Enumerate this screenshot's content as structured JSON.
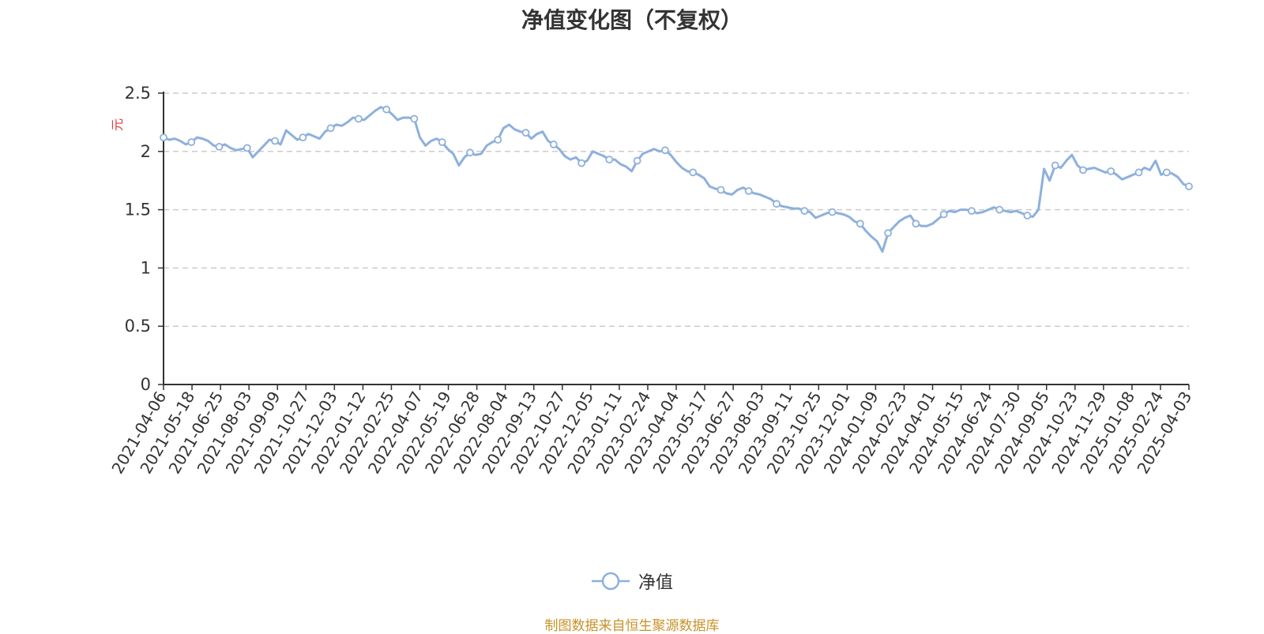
{
  "chart_data": {
    "type": "line",
    "title": "净值变化图（不复权）",
    "ylabel": "元",
    "ylim": [
      0,
      2.5
    ],
    "yticks": [
      "0",
      "0.5",
      "1",
      "1.5",
      "2",
      "2.5"
    ],
    "xlabels": [
      "2021-04-06",
      "2021-05-18",
      "2021-06-25",
      "2021-08-03",
      "2021-09-09",
      "2021-10-27",
      "2021-12-03",
      "2022-01-12",
      "2022-02-25",
      "2022-04-07",
      "2022-05-19",
      "2022-06-28",
      "2022-08-04",
      "2022-09-13",
      "2022-10-27",
      "2022-12-05",
      "2023-01-11",
      "2023-02-24",
      "2023-04-04",
      "2023-05-17",
      "2023-06-27",
      "2023-08-03",
      "2023-09-11",
      "2023-10-25",
      "2023-12-01",
      "2024-01-09",
      "2024-02-23",
      "2024-04-01",
      "2024-05-15",
      "2024-06-24",
      "2024-07-30",
      "2024-09-05",
      "2024-10-23",
      "2024-11-29",
      "2025-01-08",
      "2025-02-24",
      "2025-04-03"
    ],
    "grid": true,
    "legend_position": "bottom-center",
    "line_color": "#8eb0dd",
    "series": [
      {
        "name": "净值",
        "values": [
          2.12,
          2.1,
          2.11,
          2.09,
          2.06,
          2.08,
          2.12,
          2.11,
          2.09,
          2.05,
          2.04,
          2.06,
          2.03,
          2.01,
          2.02,
          2.03,
          1.95,
          2.0,
          2.05,
          2.1,
          2.09,
          2.06,
          2.18,
          2.14,
          2.1,
          2.12,
          2.15,
          2.13,
          2.11,
          2.17,
          2.2,
          2.23,
          2.22,
          2.25,
          2.29,
          2.28,
          2.27,
          2.31,
          2.35,
          2.38,
          2.36,
          2.32,
          2.27,
          2.29,
          2.29,
          2.28,
          2.12,
          2.05,
          2.09,
          2.11,
          2.08,
          2.02,
          1.98,
          1.88,
          1.95,
          1.99,
          1.97,
          1.98,
          2.05,
          2.08,
          2.1,
          2.2,
          2.23,
          2.19,
          2.17,
          2.16,
          2.11,
          2.15,
          2.17,
          2.09,
          2.06,
          2.02,
          1.96,
          1.93,
          1.95,
          1.9,
          1.92,
          2.0,
          1.98,
          1.96,
          1.93,
          1.93,
          1.89,
          1.87,
          1.83,
          1.92,
          1.98,
          2.0,
          2.02,
          2.0,
          2.01,
          1.97,
          1.91,
          1.86,
          1.83,
          1.82,
          1.8,
          1.77,
          1.7,
          1.68,
          1.67,
          1.64,
          1.63,
          1.67,
          1.69,
          1.66,
          1.64,
          1.63,
          1.61,
          1.59,
          1.55,
          1.53,
          1.52,
          1.51,
          1.51,
          1.49,
          1.48,
          1.43,
          1.45,
          1.47,
          1.48,
          1.47,
          1.46,
          1.44,
          1.4,
          1.38,
          1.32,
          1.27,
          1.23,
          1.14,
          1.3,
          1.35,
          1.4,
          1.43,
          1.45,
          1.38,
          1.36,
          1.36,
          1.38,
          1.42,
          1.46,
          1.49,
          1.48,
          1.5,
          1.5,
          1.49,
          1.47,
          1.48,
          1.5,
          1.52,
          1.5,
          1.49,
          1.48,
          1.49,
          1.47,
          1.45,
          1.44,
          1.5,
          1.85,
          1.75,
          1.88,
          1.86,
          1.92,
          1.97,
          1.88,
          1.84,
          1.85,
          1.86,
          1.84,
          1.82,
          1.83,
          1.8,
          1.76,
          1.78,
          1.8,
          1.82,
          1.86,
          1.84,
          1.92,
          1.8,
          1.82,
          1.81,
          1.78,
          1.72,
          1.7
        ]
      }
    ]
  },
  "legend": {
    "label": "净值",
    "icon": "circle-line-icon"
  },
  "source_note": "制图数据来自恒生聚源数据库"
}
